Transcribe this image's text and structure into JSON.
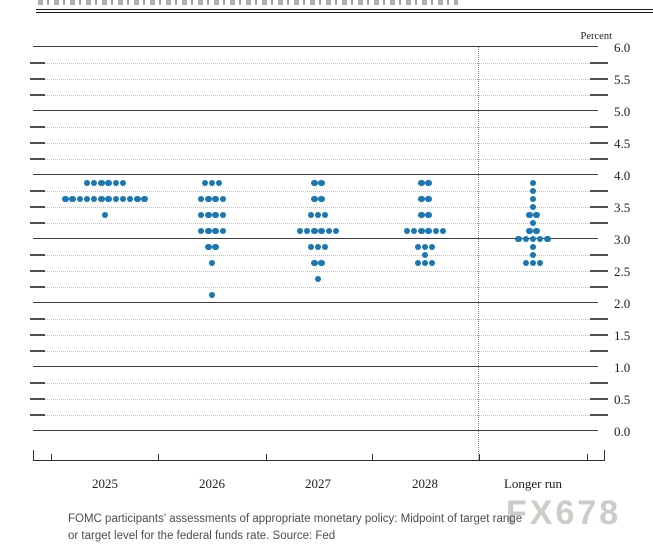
{
  "chart": {
    "percent_label": "Percent",
    "y_axis_labels": [
      "6.0",
      "5.5",
      "5.0",
      "4.5",
      "4.0",
      "3.5",
      "3.0",
      "2.5",
      "2.0",
      "1.5",
      "1.0",
      "0.5",
      "0.0"
    ]
  },
  "chart_data": {
    "type": "scatter",
    "subtype": "fomc-dot-plot",
    "categories": [
      "2025",
      "2026",
      "2027",
      "2028",
      "Longer run"
    ],
    "ylabel": "Percent",
    "ylim": [
      0.0,
      6.0
    ],
    "y_label_step": 0.5,
    "grid": "solid lines at integers, dotted lines at quarter points",
    "dot_color": "#1878b4",
    "series": [
      {
        "name": "2025",
        "dots": [
          {
            "rate": 3.875,
            "count": 6
          },
          {
            "rate": 3.625,
            "count": 12
          },
          {
            "rate": 3.375,
            "count": 1
          }
        ]
      },
      {
        "name": "2026",
        "dots": [
          {
            "rate": 3.875,
            "count": 3
          },
          {
            "rate": 3.625,
            "count": 4
          },
          {
            "rate": 3.375,
            "count": 4
          },
          {
            "rate": 3.125,
            "count": 4
          },
          {
            "rate": 2.875,
            "count": 2
          },
          {
            "rate": 2.625,
            "count": 1
          },
          {
            "rate": 2.125,
            "count": 1
          }
        ]
      },
      {
        "name": "2027",
        "dots": [
          {
            "rate": 3.875,
            "count": 2
          },
          {
            "rate": 3.625,
            "count": 2
          },
          {
            "rate": 3.375,
            "count": 3
          },
          {
            "rate": 3.125,
            "count": 6
          },
          {
            "rate": 2.875,
            "count": 3
          },
          {
            "rate": 2.625,
            "count": 2
          },
          {
            "rate": 2.375,
            "count": 1
          }
        ]
      },
      {
        "name": "2028",
        "dots": [
          {
            "rate": 3.875,
            "count": 2
          },
          {
            "rate": 3.625,
            "count": 2
          },
          {
            "rate": 3.375,
            "count": 2
          },
          {
            "rate": 3.125,
            "count": 6
          },
          {
            "rate": 2.875,
            "count": 3
          },
          {
            "rate": 2.75,
            "count": 1
          },
          {
            "rate": 2.625,
            "count": 3
          }
        ]
      },
      {
        "name": "Longer run",
        "dots": [
          {
            "rate": 3.875,
            "count": 1
          },
          {
            "rate": 3.75,
            "count": 1
          },
          {
            "rate": 3.625,
            "count": 1
          },
          {
            "rate": 3.5,
            "count": 1
          },
          {
            "rate": 3.375,
            "count": 2
          },
          {
            "rate": 3.25,
            "count": 1
          },
          {
            "rate": 3.125,
            "count": 2
          },
          {
            "rate": 3.0,
            "count": 5
          },
          {
            "rate": 2.875,
            "count": 1
          },
          {
            "rate": 2.75,
            "count": 1
          },
          {
            "rate": 2.625,
            "count": 3
          }
        ]
      }
    ]
  },
  "caption": {
    "line1": "FOMC participants' assessments of appropriate monetary policy: Midpoint of target range",
    "line2": "or target level for the federal funds rate. Source: Fed"
  },
  "watermark": "FX678"
}
